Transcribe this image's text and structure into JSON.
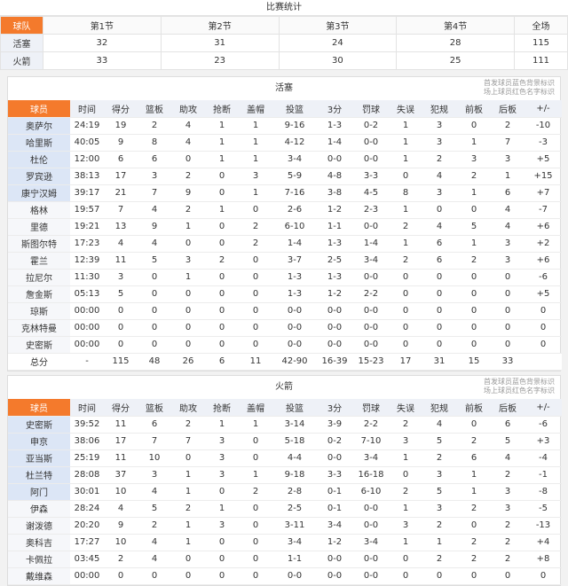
{
  "score_title": "比赛统计",
  "score_table": {
    "headers": [
      "球队",
      "第1节",
      "第2节",
      "第3节",
      "第4节",
      "全场"
    ],
    "rows": [
      [
        "活塞",
        "32",
        "31",
        "24",
        "28",
        "115"
      ],
      [
        "火箭",
        "33",
        "23",
        "30",
        "25",
        "111"
      ]
    ]
  },
  "columns": [
    "球员",
    "时间",
    "得分",
    "篮板",
    "助攻",
    "抢断",
    "盖帽",
    "投篮",
    "3分",
    "罚球",
    "失误",
    "犯规",
    "前板",
    "后板",
    "+/-"
  ],
  "legend_note": [
    "首发球员蓝色背景标识",
    "场上球员红色名字标识"
  ],
  "colors": {
    "header_accent": "#f47a2c",
    "starter_bg": "#dce6f6"
  },
  "teams": [
    {
      "name": "活塞",
      "starters": 5,
      "players": [
        [
          "奥萨尔",
          "24:19",
          "19",
          "2",
          "4",
          "1",
          "1",
          "9-16",
          "1-3",
          "0-2",
          "1",
          "3",
          "0",
          "2",
          "-10"
        ],
        [
          "哈里斯",
          "40:05",
          "9",
          "8",
          "4",
          "1",
          "1",
          "4-12",
          "1-4",
          "0-0",
          "1",
          "3",
          "1",
          "7",
          "-3"
        ],
        [
          "杜伦",
          "12:00",
          "6",
          "6",
          "0",
          "1",
          "1",
          "3-4",
          "0-0",
          "0-0",
          "1",
          "2",
          "3",
          "3",
          "+5"
        ],
        [
          "罗宾逊",
          "38:13",
          "17",
          "3",
          "2",
          "0",
          "3",
          "5-9",
          "4-8",
          "3-3",
          "0",
          "4",
          "2",
          "1",
          "+15"
        ],
        [
          "康宁汉姆",
          "39:17",
          "21",
          "7",
          "9",
          "0",
          "1",
          "7-16",
          "3-8",
          "4-5",
          "8",
          "3",
          "1",
          "6",
          "+7"
        ],
        [
          "格林",
          "19:57",
          "7",
          "4",
          "2",
          "1",
          "0",
          "2-6",
          "1-2",
          "2-3",
          "1",
          "0",
          "0",
          "4",
          "-7"
        ],
        [
          "里德",
          "19:21",
          "13",
          "9",
          "1",
          "0",
          "2",
          "6-10",
          "1-1",
          "0-0",
          "2",
          "4",
          "5",
          "4",
          "+6"
        ],
        [
          "斯图尔特",
          "17:23",
          "4",
          "4",
          "0",
          "0",
          "2",
          "1-4",
          "1-3",
          "1-4",
          "1",
          "6",
          "1",
          "3",
          "+2"
        ],
        [
          "霍兰",
          "12:39",
          "11",
          "5",
          "3",
          "2",
          "0",
          "3-7",
          "2-5",
          "3-4",
          "2",
          "6",
          "2",
          "3",
          "+6"
        ],
        [
          "拉尼尔",
          "11:30",
          "3",
          "0",
          "1",
          "0",
          "0",
          "1-3",
          "1-3",
          "0-0",
          "0",
          "0",
          "0",
          "0",
          "-6"
        ],
        [
          "詹金斯",
          "05:13",
          "5",
          "0",
          "0",
          "0",
          "0",
          "1-3",
          "1-2",
          "2-2",
          "0",
          "0",
          "0",
          "0",
          "+5"
        ],
        [
          "琼斯",
          "00:00",
          "0",
          "0",
          "0",
          "0",
          "0",
          "0-0",
          "0-0",
          "0-0",
          "0",
          "0",
          "0",
          "0",
          "0"
        ],
        [
          "克林特曼",
          "00:00",
          "0",
          "0",
          "0",
          "0",
          "0",
          "0-0",
          "0-0",
          "0-0",
          "0",
          "0",
          "0",
          "0",
          "0"
        ],
        [
          "史密斯",
          "00:00",
          "0",
          "0",
          "0",
          "0",
          "0",
          "0-0",
          "0-0",
          "0-0",
          "0",
          "0",
          "0",
          "0",
          "0"
        ]
      ],
      "total": [
        "总分",
        "-",
        "115",
        "48",
        "26",
        "6",
        "11",
        "42-90",
        "16-39",
        "15-23",
        "17",
        "31",
        "15",
        "33",
        ""
      ]
    },
    {
      "name": "火箭",
      "starters": 5,
      "players": [
        [
          "史密斯",
          "39:52",
          "11",
          "6",
          "2",
          "1",
          "1",
          "3-14",
          "3-9",
          "2-2",
          "2",
          "4",
          "0",
          "6",
          "-6"
        ],
        [
          "申京",
          "38:06",
          "17",
          "7",
          "7",
          "3",
          "0",
          "5-18",
          "0-2",
          "7-10",
          "3",
          "5",
          "2",
          "5",
          "+3"
        ],
        [
          "亚当斯",
          "25:19",
          "11",
          "10",
          "0",
          "3",
          "0",
          "4-4",
          "0-0",
          "3-4",
          "1",
          "2",
          "6",
          "4",
          "-4"
        ],
        [
          "杜兰特",
          "28:08",
          "37",
          "3",
          "1",
          "3",
          "1",
          "9-18",
          "3-3",
          "16-18",
          "0",
          "3",
          "1",
          "2",
          "-1"
        ],
        [
          "阿门",
          "30:01",
          "10",
          "4",
          "1",
          "0",
          "2",
          "2-8",
          "0-1",
          "6-10",
          "2",
          "5",
          "1",
          "3",
          "-8"
        ],
        [
          "伊森",
          "28:24",
          "4",
          "5",
          "2",
          "1",
          "0",
          "2-5",
          "0-1",
          "0-0",
          "1",
          "3",
          "2",
          "3",
          "-5"
        ],
        [
          "谢泼德",
          "20:20",
          "9",
          "2",
          "1",
          "3",
          "0",
          "3-11",
          "3-4",
          "0-0",
          "3",
          "2",
          "0",
          "2",
          "-13"
        ],
        [
          "奥科吉",
          "17:27",
          "10",
          "4",
          "1",
          "0",
          "0",
          "3-4",
          "1-2",
          "3-4",
          "1",
          "1",
          "2",
          "2",
          "+4"
        ],
        [
          "卡佩拉",
          "03:45",
          "2",
          "4",
          "0",
          "0",
          "0",
          "1-1",
          "0-0",
          "0-0",
          "0",
          "2",
          "2",
          "2",
          "+8"
        ],
        [
          "戴维森",
          "00:00",
          "0",
          "0",
          "0",
          "0",
          "0",
          "0-0",
          "0-0",
          "0-0",
          "0",
          "0",
          "0",
          "0",
          "0"
        ]
      ]
    }
  ]
}
